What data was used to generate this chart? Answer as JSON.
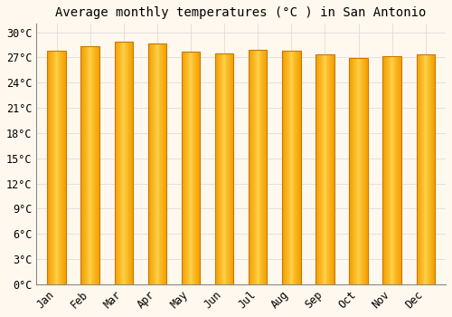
{
  "title": "Average monthly temperatures (°C ) in San Antonio",
  "months": [
    "Jan",
    "Feb",
    "Mar",
    "Apr",
    "May",
    "Jun",
    "Jul",
    "Aug",
    "Sep",
    "Oct",
    "Nov",
    "Dec"
  ],
  "values": [
    27.8,
    28.3,
    28.9,
    28.7,
    27.7,
    27.5,
    27.9,
    27.8,
    27.4,
    26.9,
    27.2,
    27.4
  ],
  "bar_color_center": "#FFD54F",
  "bar_color_edge": "#F5A000",
  "bar_edge_color": "#C87800",
  "background_color": "#FFF8EE",
  "grid_color": "#DDDDDD",
  "ylim": [
    0,
    31
  ],
  "yticks": [
    0,
    3,
    6,
    9,
    12,
    15,
    18,
    21,
    24,
    27,
    30
  ],
  "title_fontsize": 10,
  "tick_fontsize": 8.5,
  "bar_width": 0.55
}
